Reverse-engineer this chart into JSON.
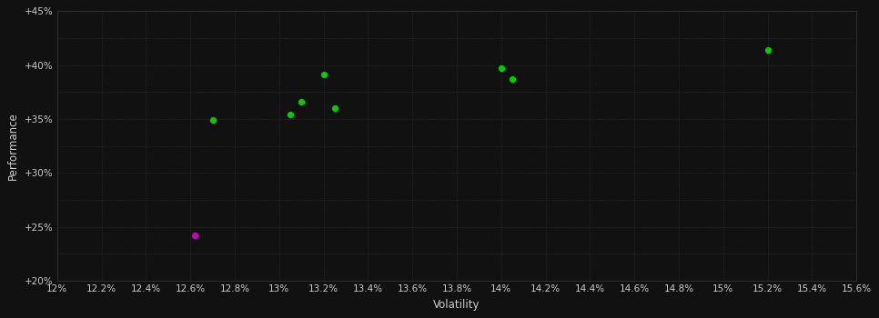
{
  "background_color": "#111111",
  "plot_bg_color": "#111111",
  "grid_color": "#3a3a3a",
  "text_color": "#cccccc",
  "xlabel": "Volatility",
  "ylabel": "Performance",
  "xlim": [
    0.12,
    0.156
  ],
  "ylim": [
    0.2,
    0.45
  ],
  "xtick_step": 0.002,
  "ytick_major_step": 0.05,
  "ytick_minor_step": 0.025,
  "green_points": [
    [
      0.127,
      0.349
    ],
    [
      0.1305,
      0.354
    ],
    [
      0.131,
      0.366
    ],
    [
      0.132,
      0.391
    ],
    [
      0.1325,
      0.36
    ],
    [
      0.14,
      0.397
    ],
    [
      0.1405,
      0.387
    ],
    [
      0.152,
      0.414
    ]
  ],
  "magenta_point": [
    0.1262,
    0.242
  ],
  "green_color": "#00cc00",
  "magenta_color": "#cc00cc",
  "dot_size": 18
}
